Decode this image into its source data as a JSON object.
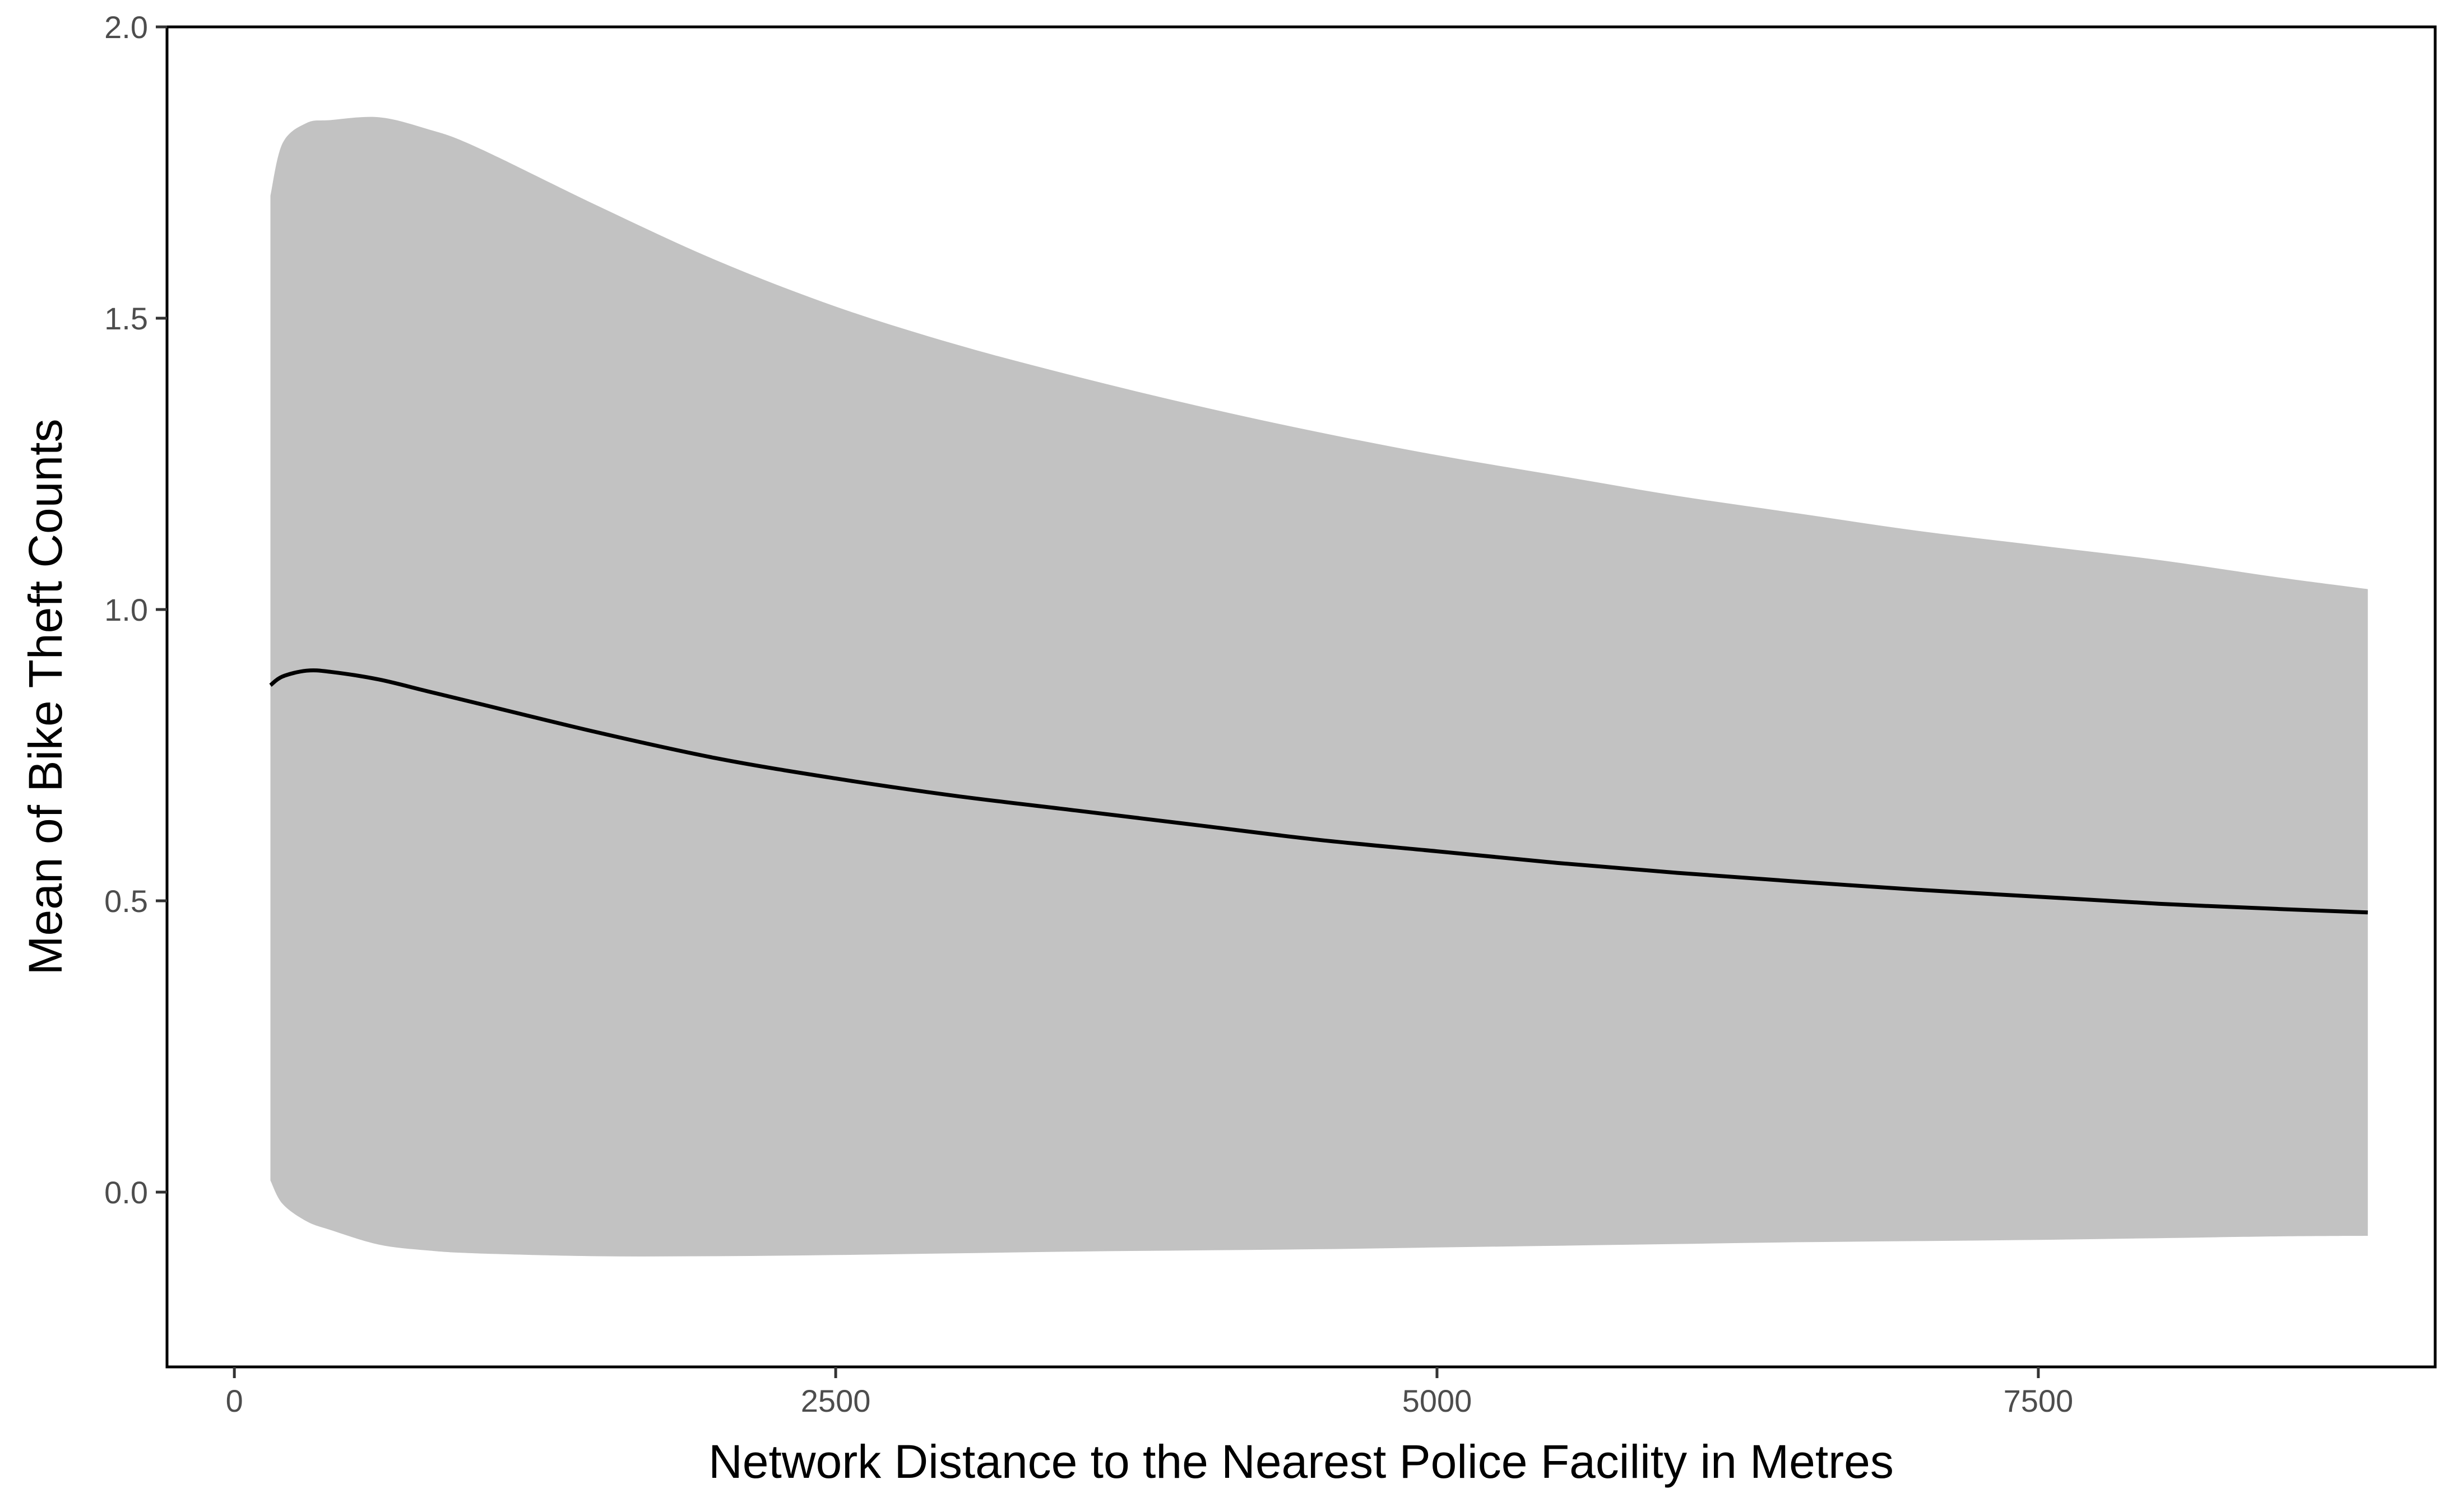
{
  "chart_data": {
    "type": "line",
    "xlabel": "Network Distance to the Nearest Police Facility in Metres",
    "ylabel": "Mean of Bike Theft Counts",
    "xlim": [
      -280,
      9150
    ],
    "ylim": [
      -0.3,
      2.0
    ],
    "x_ticks": [
      0,
      2500,
      5000,
      7500
    ],
    "x_tick_labels": [
      "0",
      "2500",
      "5000",
      "7500"
    ],
    "y_ticks": [
      0.0,
      0.5,
      1.0,
      1.5,
      2.0
    ],
    "y_tick_labels": [
      "0.0",
      "0.5",
      "1.0",
      "1.5",
      "2.0"
    ],
    "grid": false,
    "legend": "none",
    "series": [
      {
        "x": [
          150,
          200,
          300,
          400,
          600,
          800,
          1000,
          1500,
          2000,
          2500,
          3000,
          3500,
          4000,
          4500,
          5000,
          5500,
          6000,
          6500,
          7000,
          7500,
          8000,
          8500,
          8870
        ],
        "y": [
          0.87,
          0.885,
          0.895,
          0.893,
          0.88,
          0.86,
          0.84,
          0.79,
          0.745,
          0.71,
          0.68,
          0.655,
          0.63,
          0.605,
          0.585,
          0.565,
          0.548,
          0.533,
          0.519,
          0.507,
          0.495,
          0.486,
          0.48
        ],
        "lower": [
          0.02,
          -0.02,
          -0.05,
          -0.065,
          -0.09,
          -0.1,
          -0.105,
          -0.11,
          -0.11,
          -0.108,
          -0.105,
          -0.102,
          -0.1,
          -0.098,
          -0.095,
          -0.092,
          -0.089,
          -0.086,
          -0.084,
          -0.082,
          -0.079,
          -0.076,
          -0.075
        ],
        "upper": [
          1.71,
          1.8,
          1.835,
          1.84,
          1.845,
          1.825,
          1.795,
          1.695,
          1.6,
          1.52,
          1.455,
          1.4,
          1.35,
          1.305,
          1.265,
          1.23,
          1.195,
          1.165,
          1.135,
          1.11,
          1.085,
          1.055,
          1.035
        ]
      }
    ],
    "colors": {
      "ribbon": "#c2c2c2",
      "line": "#000000",
      "panel_border": "#000000",
      "tick_text": "#4d4d4d"
    }
  }
}
